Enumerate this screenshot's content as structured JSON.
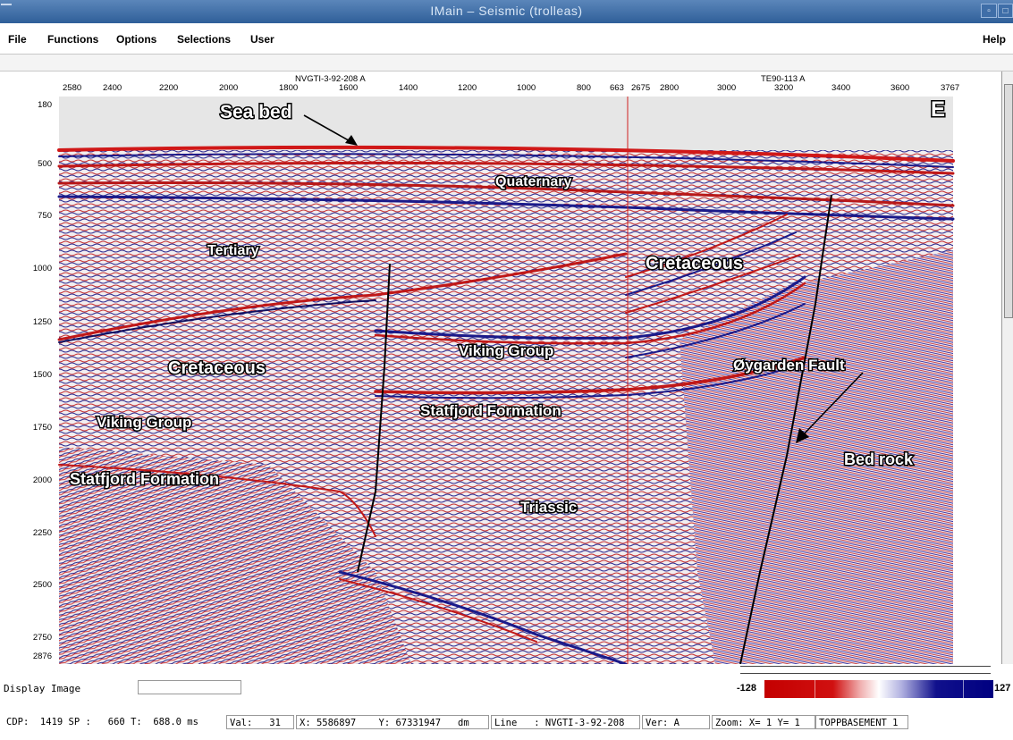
{
  "window": {
    "title": "IMain – Seismic (trolleas)",
    "controls": [
      "▫",
      "□"
    ]
  },
  "menu": {
    "file": "File",
    "functions": "Functions",
    "options": "Options",
    "selections": "Selections",
    "user": "User",
    "help": "Help"
  },
  "colors": {
    "title_bar": "#3a69a3",
    "trace_red": "#c40000",
    "trace_blue": "#1a1a8a",
    "seafloor_gray": "#c8c8c8",
    "fault_line": "#000000"
  },
  "seismic": {
    "line_left": "NVGTI-3-92-208 A",
    "line_right": "TE90-113 A",
    "cdp_ticks_left": [
      "2580",
      "2400",
      "2200",
      "2000",
      "1800",
      "1600",
      "1400",
      "1200",
      "1000",
      "800",
      "663"
    ],
    "cdp_ticks_right": [
      "2675",
      "2800",
      "3000",
      "3200",
      "3400",
      "3600",
      "3767"
    ],
    "time_ticks": [
      "180",
      "500",
      "750",
      "1000",
      "1250",
      "1500",
      "1750",
      "2000",
      "2250",
      "2500",
      "2750",
      "2876"
    ],
    "direction": "E",
    "annotations": {
      "sea_bed": "Sea bed",
      "quaternary": "Quaternary",
      "tertiary": "Tertiary",
      "cretaceous_left": "Cretaceous",
      "cretaceous_right": "Cretaceous",
      "viking_left": "Viking Group",
      "viking_center": "Viking Group",
      "statfjord_left": "Statfjord Formation",
      "statfjord_center": "Statfjord Formation",
      "triassic": "Triassic",
      "oygarden_fault": "Øygarden Fault",
      "bed_rock": "Bed rock"
    }
  },
  "status": {
    "display_image": "Display Image",
    "colorbar_min": "-128",
    "colorbar_max": "127"
  },
  "info": {
    "cdp_sp_t": "CDP:  1419 SP :   660 T:  688.0 ms",
    "val": "Val:   31",
    "xy": "X: 5586897    Y: 67331947   dm",
    "line": "Line   : NVGTI-3-92-208",
    "ver": "Ver: A",
    "zoom": "Zoom: X= 1 Y= 1",
    "horizon": "TOPPBASEMENT 1"
  }
}
